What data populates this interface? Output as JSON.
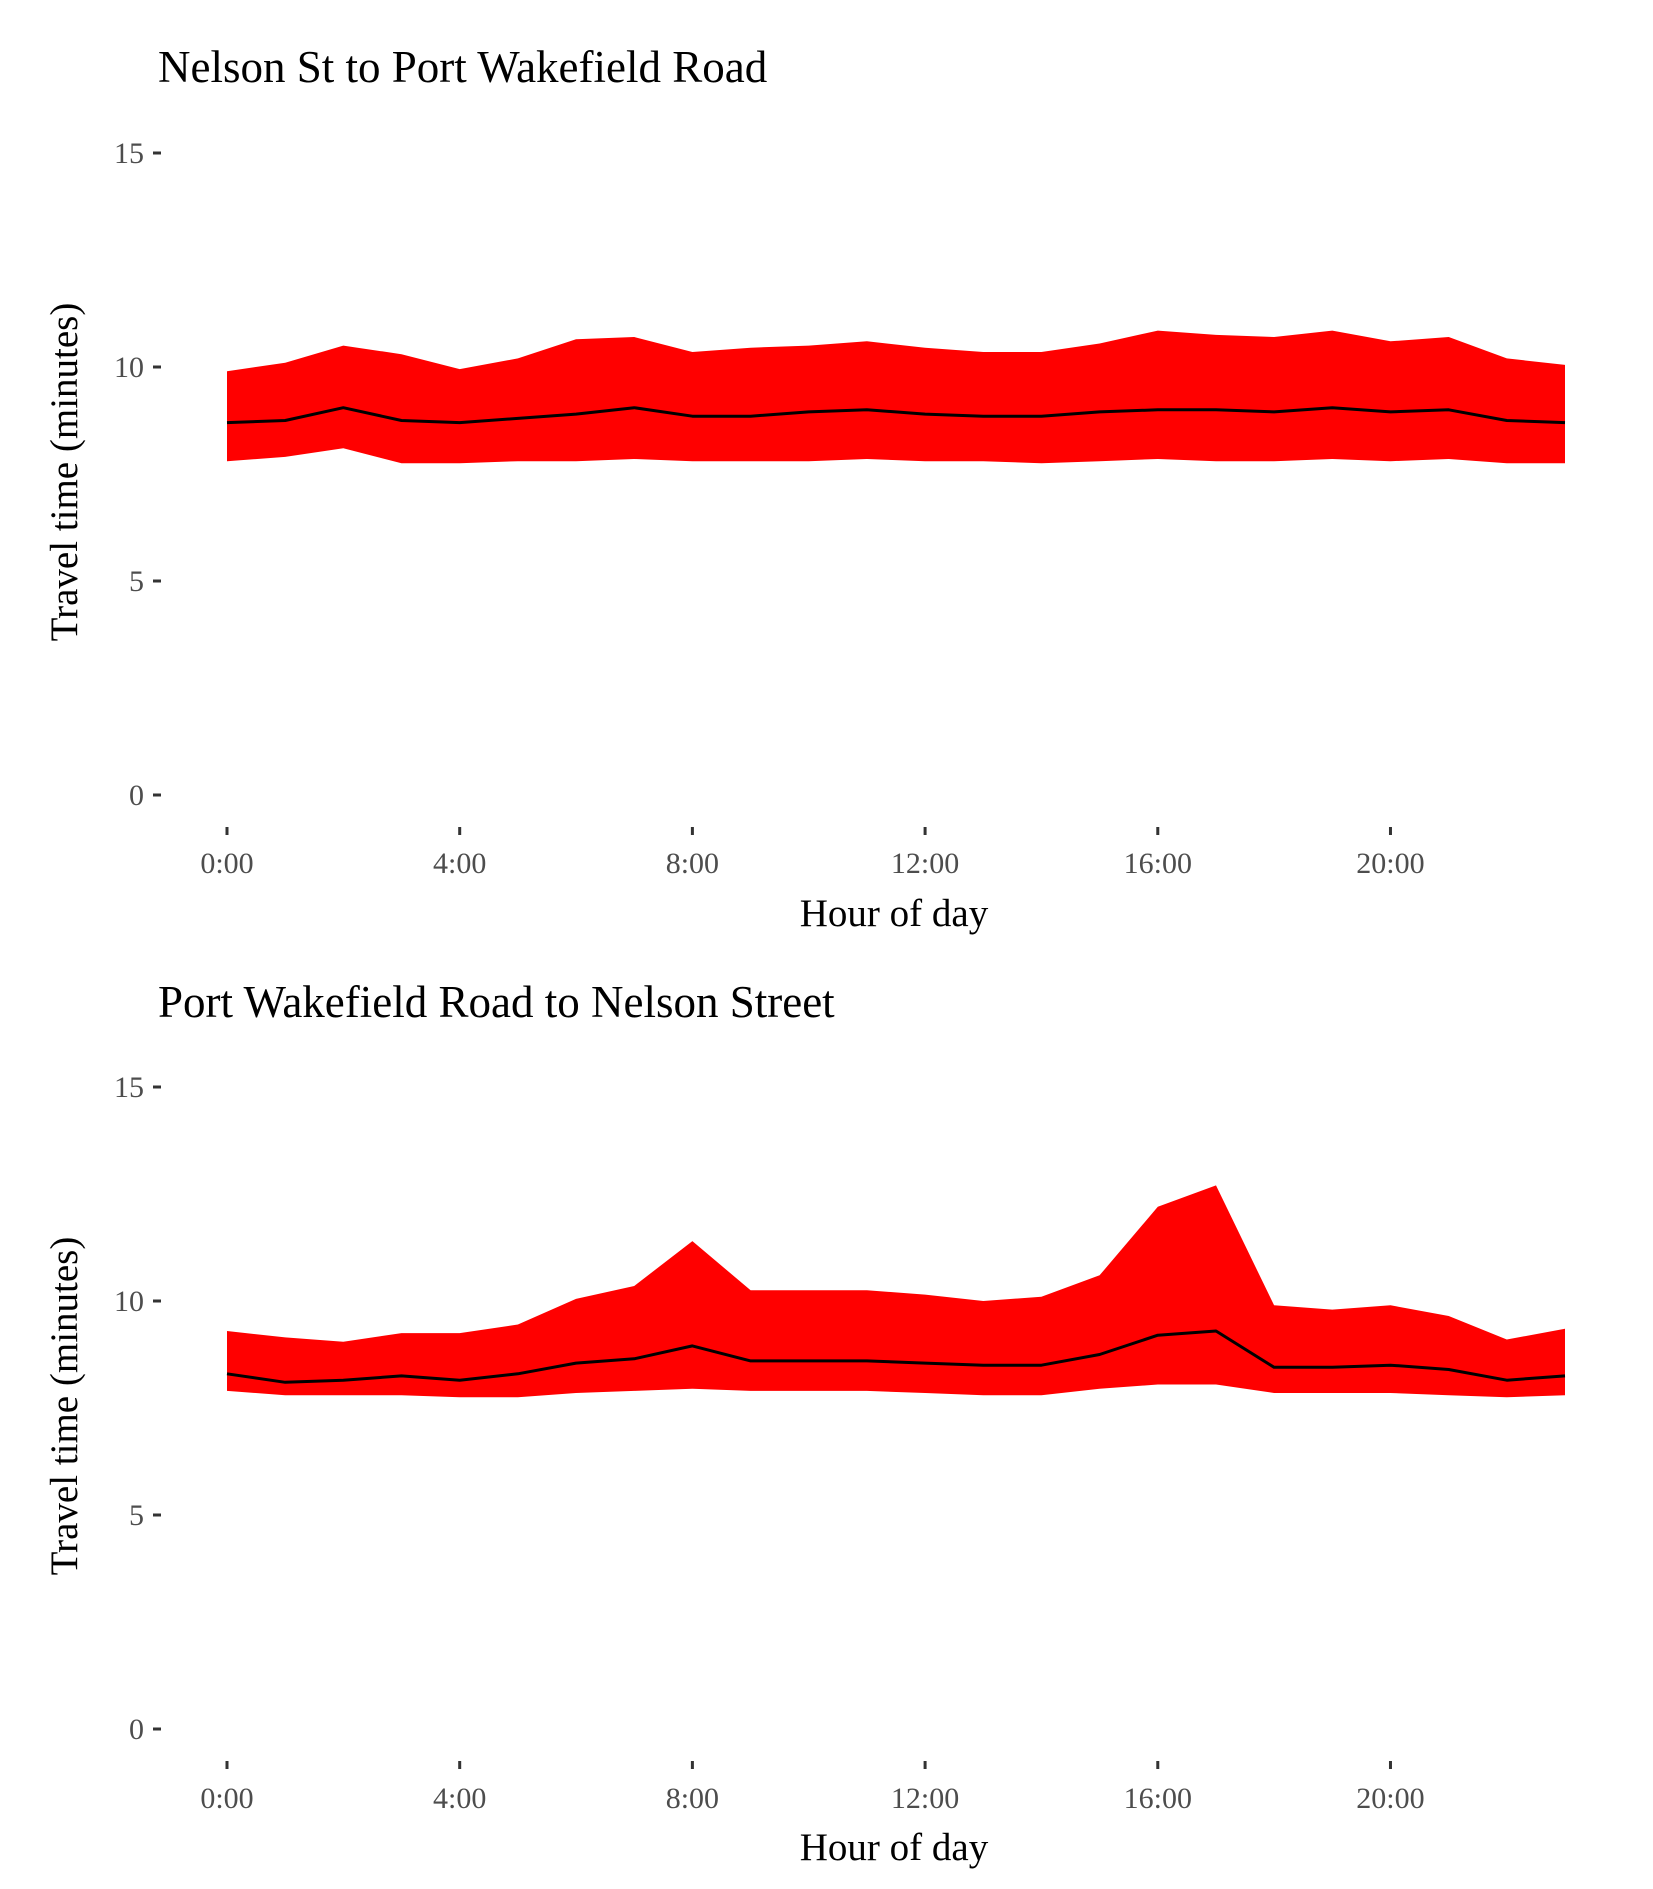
{
  "chart_data": [
    {
      "type": "area",
      "title": "Nelson St to Port Wakefield Road",
      "xlabel": "Hour of day",
      "ylabel": "Travel time (minutes)",
      "x_unit": "hour",
      "x": [
        0,
        1,
        2,
        3,
        4,
        5,
        6,
        7,
        8,
        9,
        10,
        11,
        12,
        13,
        14,
        15,
        16,
        17,
        18,
        19,
        20,
        21,
        22,
        23
      ],
      "x_ticks": [
        0,
        4,
        8,
        12,
        16,
        20
      ],
      "x_tick_labels": [
        "0:00",
        "4:00",
        "8:00",
        "12:00",
        "16:00",
        "20:00"
      ],
      "y_ticks": [
        0,
        5,
        10,
        15
      ],
      "y_tick_labels": [
        "0",
        "5",
        "10",
        "15"
      ],
      "ylim": [
        0,
        15
      ],
      "xlim": [
        0,
        23
      ],
      "grid": false,
      "colors": {
        "band": "#ff0000",
        "line": "#000000"
      },
      "series": [
        {
          "role": "band_upper",
          "values": [
            9.9,
            10.1,
            10.5,
            10.3,
            9.95,
            10.2,
            10.65,
            10.7,
            10.35,
            10.45,
            10.5,
            10.6,
            10.45,
            10.35,
            10.35,
            10.55,
            10.85,
            10.75,
            10.7,
            10.85,
            10.6,
            10.7,
            10.2,
            10.05
          ]
        },
        {
          "role": "median",
          "values": [
            8.7,
            8.75,
            9.05,
            8.75,
            8.7,
            8.8,
            8.9,
            9.05,
            8.85,
            8.85,
            8.95,
            9.0,
            8.9,
            8.85,
            8.85,
            8.95,
            9.0,
            9.0,
            8.95,
            9.05,
            8.95,
            9.0,
            8.75,
            8.7
          ]
        },
        {
          "role": "band_lower",
          "values": [
            7.8,
            7.9,
            8.1,
            7.75,
            7.75,
            7.8,
            7.8,
            7.85,
            7.8,
            7.8,
            7.8,
            7.85,
            7.8,
            7.8,
            7.75,
            7.8,
            7.85,
            7.8,
            7.8,
            7.85,
            7.8,
            7.85,
            7.75,
            7.75
          ]
        }
      ]
    },
    {
      "type": "area",
      "title": "Port Wakefield Road to Nelson Street",
      "xlabel": "Hour of day",
      "ylabel": "Travel time (minutes)",
      "x_unit": "hour",
      "x": [
        0,
        1,
        2,
        3,
        4,
        5,
        6,
        7,
        8,
        9,
        10,
        11,
        12,
        13,
        14,
        15,
        16,
        17,
        18,
        19,
        20,
        21,
        22,
        23
      ],
      "x_ticks": [
        0,
        4,
        8,
        12,
        16,
        20
      ],
      "x_tick_labels": [
        "0:00",
        "4:00",
        "8:00",
        "12:00",
        "16:00",
        "20:00"
      ],
      "y_ticks": [
        0,
        5,
        10,
        15
      ],
      "y_tick_labels": [
        "0",
        "5",
        "10",
        "15"
      ],
      "ylim": [
        0,
        15
      ],
      "xlim": [
        0,
        23
      ],
      "grid": false,
      "colors": {
        "band": "#ff0000",
        "line": "#000000"
      },
      "series": [
        {
          "role": "band_upper",
          "values": [
            9.3,
            9.15,
            9.05,
            9.25,
            9.25,
            9.45,
            10.05,
            10.35,
            11.4,
            10.25,
            10.25,
            10.25,
            10.15,
            10.0,
            10.1,
            10.6,
            12.2,
            12.7,
            9.9,
            9.8,
            9.9,
            9.65,
            9.1,
            9.35
          ]
        },
        {
          "role": "median",
          "values": [
            8.3,
            8.1,
            8.15,
            8.25,
            8.15,
            8.3,
            8.55,
            8.65,
            8.95,
            8.6,
            8.6,
            8.6,
            8.55,
            8.5,
            8.5,
            8.75,
            9.2,
            9.3,
            8.45,
            8.45,
            8.5,
            8.4,
            8.15,
            8.25
          ]
        },
        {
          "role": "band_lower",
          "values": [
            7.9,
            7.8,
            7.8,
            7.8,
            7.75,
            7.75,
            7.85,
            7.9,
            7.95,
            7.9,
            7.9,
            7.9,
            7.85,
            7.8,
            7.8,
            7.95,
            8.05,
            8.05,
            7.85,
            7.85,
            7.85,
            7.8,
            7.75,
            7.8
          ]
        }
      ]
    }
  ]
}
